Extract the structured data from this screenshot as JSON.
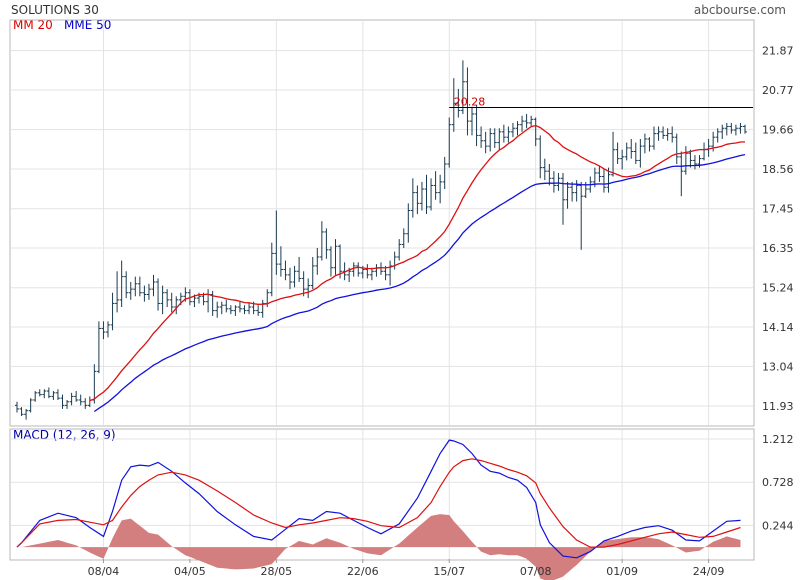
{
  "header": {
    "title": "SOLUTIONS 30",
    "source": "abcbourse.com",
    "ma_label": "MM 20",
    "ema_label": "MME 50",
    "macd_label": "MACD (12, 26, 9)",
    "resistance_label": "20.28"
  },
  "colors": {
    "price_bar": "#1a3b50",
    "ma20": "#dd1111",
    "ema50": "#1111dd",
    "histogram": "#d47f7f",
    "grid": "#e3e3e3",
    "resistance": "#000000"
  },
  "chart_data": [
    {
      "type": "ohlc",
      "name": "price",
      "y_ticks": [
        "21.87",
        "20.77",
        "19.66",
        "18.56",
        "17.45",
        "16.35",
        "15.24",
        "14.14",
        "13.04",
        "11.93"
      ],
      "ylim": [
        11.4,
        22.7
      ],
      "x_ticks": [
        "08/04",
        "04/05",
        "28/05",
        "22/06",
        "15/07",
        "07/08",
        "01/09",
        "24/09"
      ],
      "x_tick_index": [
        19,
        38,
        57,
        76,
        95,
        114,
        133,
        152
      ],
      "grid": true,
      "resistance": 20.28,
      "ohlc": [
        [
          11.95,
          12.05,
          11.75,
          11.85
        ],
        [
          11.85,
          11.9,
          11.65,
          11.7
        ],
        [
          11.7,
          11.85,
          11.55,
          11.8
        ],
        [
          11.8,
          12.15,
          11.75,
          12.1
        ],
        [
          12.1,
          12.35,
          12.05,
          12.3
        ],
        [
          12.3,
          12.4,
          12.2,
          12.25
        ],
        [
          12.25,
          12.4,
          12.15,
          12.35
        ],
        [
          12.35,
          12.45,
          12.15,
          12.2
        ],
        [
          12.2,
          12.35,
          12.1,
          12.3
        ],
        [
          12.3,
          12.4,
          12.1,
          12.15
        ],
        [
          12.15,
          12.25,
          11.85,
          11.95
        ],
        [
          11.95,
          12.1,
          11.85,
          12.05
        ],
        [
          12.05,
          12.3,
          11.95,
          12.2
        ],
        [
          12.2,
          12.35,
          12.05,
          12.1
        ],
        [
          12.1,
          12.25,
          11.95,
          12.05
        ],
        [
          12.05,
          12.15,
          11.85,
          11.95
        ],
        [
          11.95,
          12.2,
          11.9,
          12.1
        ],
        [
          12.1,
          13.1,
          12.0,
          12.9
        ],
        [
          12.9,
          14.3,
          12.85,
          14.1
        ],
        [
          14.1,
          14.3,
          13.8,
          14.0
        ],
        [
          14.0,
          14.3,
          13.85,
          14.2
        ],
        [
          14.2,
          15.1,
          14.05,
          14.8
        ],
        [
          14.8,
          15.7,
          14.55,
          14.9
        ],
        [
          14.9,
          16.0,
          14.7,
          15.55
        ],
        [
          15.55,
          15.7,
          14.95,
          15.1
        ],
        [
          15.1,
          15.4,
          14.9,
          15.2
        ],
        [
          15.2,
          15.55,
          15.0,
          15.35
        ],
        [
          15.35,
          15.55,
          15.0,
          15.1
        ],
        [
          15.1,
          15.3,
          14.85,
          15.05
        ],
        [
          15.05,
          15.35,
          14.9,
          15.2
        ],
        [
          15.2,
          15.6,
          15.0,
          15.4
        ],
        [
          15.4,
          15.5,
          14.6,
          14.8
        ],
        [
          14.8,
          15.3,
          14.5,
          15.1
        ],
        [
          15.1,
          15.2,
          14.7,
          14.9
        ],
        [
          14.9,
          15.1,
          14.55,
          14.7
        ],
        [
          14.7,
          15.0,
          14.5,
          14.9
        ],
        [
          14.9,
          15.1,
          14.75,
          15.0
        ],
        [
          15.0,
          15.25,
          14.85,
          15.1
        ],
        [
          15.1,
          15.2,
          14.75,
          14.85
        ],
        [
          14.85,
          15.05,
          14.7,
          14.95
        ],
        [
          14.95,
          15.1,
          14.8,
          15.0
        ],
        [
          15.0,
          15.1,
          14.75,
          14.85
        ],
        [
          14.85,
          15.2,
          14.55,
          15.05
        ],
        [
          15.05,
          15.15,
          14.45,
          14.6
        ],
        [
          14.6,
          14.85,
          14.4,
          14.7
        ],
        [
          14.7,
          14.85,
          14.5,
          14.75
        ],
        [
          14.75,
          14.9,
          14.55,
          14.65
        ],
        [
          14.65,
          14.75,
          14.5,
          14.6
        ],
        [
          14.6,
          14.75,
          14.45,
          14.7
        ],
        [
          14.7,
          14.85,
          14.55,
          14.65
        ],
        [
          14.65,
          14.75,
          14.5,
          14.6
        ],
        [
          14.6,
          14.8,
          14.5,
          14.7
        ],
        [
          14.7,
          14.85,
          14.5,
          14.6
        ],
        [
          14.6,
          14.75,
          14.45,
          14.55
        ],
        [
          14.55,
          14.9,
          14.4,
          14.8
        ],
        [
          14.8,
          15.2,
          14.7,
          15.1
        ],
        [
          15.1,
          16.5,
          15.0,
          16.2
        ],
        [
          16.2,
          17.4,
          15.6,
          15.9
        ],
        [
          15.9,
          16.4,
          15.55,
          15.75
        ],
        [
          15.75,
          16.0,
          15.45,
          15.6
        ],
        [
          15.6,
          15.8,
          15.2,
          15.4
        ],
        [
          15.4,
          15.85,
          15.25,
          15.7
        ],
        [
          15.7,
          16.1,
          15.4,
          15.5
        ],
        [
          15.5,
          15.7,
          15.0,
          15.2
        ],
        [
          15.2,
          15.5,
          14.95,
          15.3
        ],
        [
          15.3,
          16.1,
          15.2,
          15.85
        ],
        [
          15.85,
          16.35,
          15.6,
          16.1
        ],
        [
          16.1,
          17.1,
          16.0,
          16.8
        ],
        [
          16.8,
          16.9,
          16.05,
          16.3
        ],
        [
          16.3,
          16.4,
          15.55,
          15.8
        ],
        [
          15.8,
          16.6,
          15.6,
          16.4
        ],
        [
          16.4,
          16.45,
          15.5,
          15.7
        ],
        [
          15.7,
          15.95,
          15.45,
          15.6
        ],
        [
          15.6,
          15.8,
          15.4,
          15.7
        ],
        [
          15.7,
          15.95,
          15.55,
          15.85
        ],
        [
          15.85,
          15.95,
          15.55,
          15.65
        ],
        [
          15.65,
          15.85,
          15.5,
          15.75
        ],
        [
          15.75,
          15.9,
          15.5,
          15.6
        ],
        [
          15.6,
          15.8,
          15.45,
          15.7
        ],
        [
          15.7,
          15.9,
          15.55,
          15.8
        ],
        [
          15.8,
          15.95,
          15.6,
          15.7
        ],
        [
          15.7,
          15.85,
          15.45,
          15.6
        ],
        [
          15.6,
          16.0,
          15.3,
          15.85
        ],
        [
          15.85,
          16.25,
          15.75,
          16.1
        ],
        [
          16.1,
          16.6,
          16.0,
          16.45
        ],
        [
          16.45,
          16.9,
          16.35,
          16.75
        ],
        [
          16.75,
          17.6,
          16.5,
          17.4
        ],
        [
          17.4,
          18.3,
          17.2,
          17.9
        ],
        [
          17.9,
          18.1,
          17.3,
          17.6
        ],
        [
          17.6,
          18.2,
          17.4,
          18.0
        ],
        [
          18.0,
          18.4,
          17.3,
          17.5
        ],
        [
          17.5,
          18.3,
          17.4,
          18.1
        ],
        [
          18.1,
          18.5,
          17.7,
          17.9
        ],
        [
          17.9,
          18.4,
          17.6,
          18.2
        ],
        [
          18.2,
          18.9,
          18.0,
          18.7
        ],
        [
          18.7,
          20.0,
          18.6,
          19.8
        ],
        [
          19.8,
          21.1,
          19.6,
          20.4
        ],
        [
          20.4,
          20.8,
          20.0,
          20.2
        ],
        [
          20.2,
          21.6,
          20.1,
          21.0
        ],
        [
          21.0,
          21.4,
          19.5,
          19.9
        ],
        [
          19.9,
          20.3,
          19.5,
          20.1
        ],
        [
          20.1,
          20.35,
          19.2,
          19.5
        ],
        [
          19.5,
          19.75,
          19.15,
          19.35
        ],
        [
          19.35,
          19.6,
          19.0,
          19.2
        ],
        [
          19.2,
          19.7,
          19.05,
          19.55
        ],
        [
          19.55,
          19.7,
          19.15,
          19.3
        ],
        [
          19.3,
          19.7,
          19.1,
          19.6
        ],
        [
          19.6,
          19.8,
          19.3,
          19.45
        ],
        [
          19.45,
          19.75,
          19.3,
          19.6
        ],
        [
          19.6,
          19.85,
          19.45,
          19.7
        ],
        [
          19.7,
          19.9,
          19.5,
          19.8
        ],
        [
          19.8,
          20.05,
          19.6,
          19.9
        ],
        [
          19.9,
          20.1,
          19.7,
          19.85
        ],
        [
          19.85,
          20.05,
          19.75,
          19.95
        ],
        [
          19.95,
          20.0,
          19.2,
          19.4
        ],
        [
          19.4,
          19.5,
          18.3,
          18.6
        ],
        [
          18.6,
          18.85,
          18.25,
          18.5
        ],
        [
          18.5,
          18.7,
          18.1,
          18.3
        ],
        [
          18.3,
          18.5,
          17.9,
          18.1
        ],
        [
          18.1,
          18.45,
          17.95,
          18.3
        ],
        [
          18.3,
          18.45,
          17.0,
          17.7
        ],
        [
          17.7,
          18.2,
          17.45,
          18.05
        ],
        [
          18.05,
          18.2,
          17.65,
          17.9
        ],
        [
          17.9,
          18.25,
          17.65,
          18.1
        ],
        [
          18.1,
          18.2,
          16.3,
          17.8
        ],
        [
          17.8,
          18.2,
          17.75,
          18.0
        ],
        [
          18.0,
          18.35,
          17.9,
          18.2
        ],
        [
          18.2,
          18.6,
          18.05,
          18.45
        ],
        [
          18.45,
          18.65,
          18.2,
          18.35
        ],
        [
          18.35,
          18.55,
          17.9,
          18.05
        ],
        [
          18.05,
          18.6,
          17.9,
          18.4
        ],
        [
          18.4,
          19.6,
          18.35,
          19.1
        ],
        [
          19.1,
          19.3,
          18.7,
          18.85
        ],
        [
          18.85,
          19.1,
          18.55,
          18.9
        ],
        [
          18.9,
          19.3,
          18.8,
          19.15
        ],
        [
          19.15,
          19.4,
          18.85,
          19.05
        ],
        [
          19.05,
          19.3,
          18.7,
          18.8
        ],
        [
          18.8,
          19.4,
          18.6,
          19.2
        ],
        [
          19.2,
          19.55,
          19.0,
          19.4
        ],
        [
          19.4,
          19.45,
          19.05,
          19.2
        ],
        [
          19.2,
          19.75,
          19.1,
          19.55
        ],
        [
          19.55,
          19.75,
          19.35,
          19.6
        ],
        [
          19.6,
          19.75,
          19.4,
          19.5
        ],
        [
          19.5,
          19.7,
          19.35,
          19.55
        ],
        [
          19.55,
          19.75,
          19.3,
          19.45
        ],
        [
          19.45,
          19.55,
          18.7,
          18.9
        ],
        [
          18.9,
          19.05,
          17.8,
          18.5
        ],
        [
          18.5,
          19.2,
          18.4,
          19.0
        ],
        [
          19.0,
          19.1,
          18.6,
          18.8
        ],
        [
          18.8,
          18.95,
          18.55,
          18.7
        ],
        [
          18.7,
          18.95,
          18.6,
          18.85
        ],
        [
          18.85,
          19.3,
          18.8,
          19.1
        ],
        [
          19.1,
          19.4,
          18.9,
          19.2
        ],
        [
          19.2,
          19.6,
          19.05,
          19.45
        ],
        [
          19.45,
          19.7,
          19.3,
          19.6
        ],
        [
          19.6,
          19.8,
          19.4,
          19.7
        ],
        [
          19.7,
          19.85,
          19.5,
          19.75
        ],
        [
          19.75,
          19.85,
          19.55,
          19.65
        ],
        [
          19.65,
          19.8,
          19.5,
          19.7
        ],
        [
          19.7,
          19.85,
          19.55,
          19.75
        ],
        [
          19.75,
          19.8,
          19.55,
          19.6
        ]
      ]
    },
    {
      "type": "macd",
      "name": "MACD (12, 26, 9)",
      "y_ticks": [
        "1.212",
        "0.728",
        "0.244"
      ],
      "ylim": [
        -0.133,
        1.313
      ],
      "x_index": [
        1,
        5,
        9,
        13,
        16,
        19,
        21,
        23,
        25,
        27,
        29,
        31,
        34,
        37,
        40,
        44,
        48,
        52,
        56,
        59,
        62,
        65,
        68,
        71,
        74,
        77,
        80,
        84,
        88,
        91,
        93,
        95,
        96,
        98,
        100,
        102,
        104,
        106,
        108,
        110,
        112,
        114,
        115,
        117,
        120,
        123,
        126,
        129,
        132,
        135,
        138,
        141,
        144,
        147,
        150,
        153,
        156,
        159
      ],
      "macd": [
        0.05,
        0.3,
        0.38,
        0.33,
        0.22,
        0.12,
        0.4,
        0.75,
        0.9,
        0.92,
        0.91,
        0.95,
        0.85,
        0.72,
        0.6,
        0.4,
        0.25,
        0.12,
        0.08,
        0.2,
        0.32,
        0.3,
        0.4,
        0.38,
        0.3,
        0.22,
        0.15,
        0.26,
        0.55,
        0.85,
        1.05,
        1.2,
        1.19,
        1.15,
        1.05,
        0.92,
        0.85,
        0.83,
        0.78,
        0.75,
        0.67,
        0.5,
        0.25,
        0.05,
        -0.1,
        -0.12,
        -0.05,
        0.07,
        0.12,
        0.18,
        0.22,
        0.24,
        0.19,
        0.08,
        0.07,
        0.18,
        0.29,
        0.3
      ],
      "signal": [
        0.05,
        0.26,
        0.3,
        0.31,
        0.28,
        0.25,
        0.3,
        0.45,
        0.58,
        0.68,
        0.75,
        0.81,
        0.84,
        0.81,
        0.75,
        0.63,
        0.5,
        0.36,
        0.27,
        0.22,
        0.25,
        0.27,
        0.3,
        0.33,
        0.32,
        0.29,
        0.24,
        0.22,
        0.33,
        0.5,
        0.68,
        0.84,
        0.9,
        0.97,
        0.99,
        0.97,
        0.94,
        0.91,
        0.87,
        0.84,
        0.8,
        0.72,
        0.6,
        0.44,
        0.23,
        0.08,
        0.0,
        0.0,
        0.03,
        0.07,
        0.11,
        0.15,
        0.17,
        0.14,
        0.11,
        0.12,
        0.17,
        0.22
      ],
      "histogram_color": "#d47f7f"
    }
  ]
}
